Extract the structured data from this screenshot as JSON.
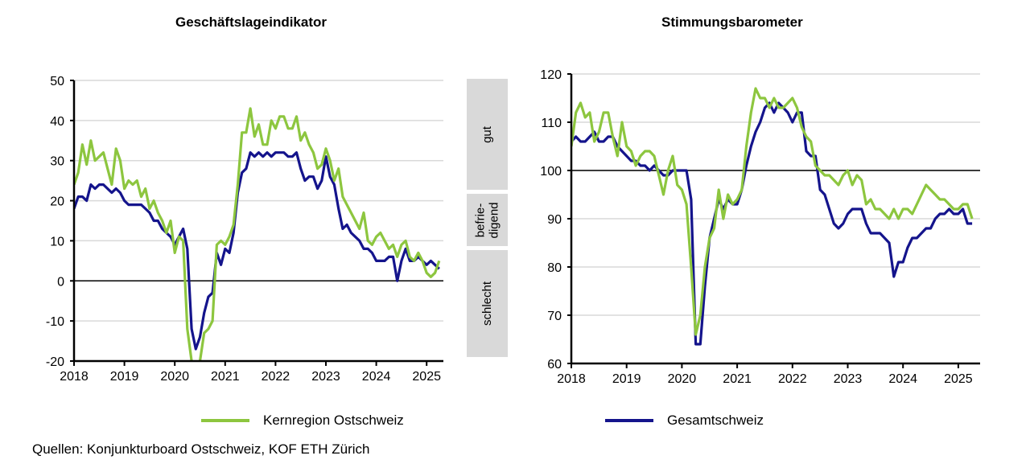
{
  "footer": {
    "source": "Quellen: Konjunkturboard Ostschweiz, KOF ETH Zürich"
  },
  "legend": [
    {
      "label": "Kernregion Ostschweiz",
      "color": "#8DC63F"
    },
    {
      "label": "Gesamtschweiz",
      "color": "#14148C"
    }
  ],
  "chart_data": [
    {
      "type": "line",
      "title": "Geschäftslageindikator",
      "x_start": "2018-01",
      "frequency": "monthly",
      "xticks": [
        "2018",
        "2019",
        "2020",
        "2021",
        "2022",
        "2023",
        "2024",
        "2025"
      ],
      "ylim": [
        -20,
        50
      ],
      "yticks": [
        -20,
        -10,
        0,
        10,
        20,
        30,
        40,
        50
      ],
      "reference_line": 0,
      "bands": [
        {
          "label": "gut"
        },
        {
          "label": "befrie-\ndigend"
        },
        {
          "label": "schlecht"
        }
      ],
      "series": [
        {
          "name": "Kernregion Ostschweiz",
          "color": "#8DC63F",
          "values": [
            24,
            27,
            34,
            29,
            35,
            30,
            31,
            32,
            28,
            24,
            33,
            30,
            23,
            25,
            24,
            25,
            21,
            23,
            18,
            20,
            17,
            15,
            12,
            15,
            7,
            11,
            10,
            -12,
            -20,
            -22,
            -20,
            -13,
            -12,
            -10,
            9,
            10,
            9,
            11,
            14,
            24,
            37,
            37,
            43,
            36,
            39,
            34,
            34,
            40,
            38,
            41,
            41,
            38,
            38,
            41,
            35,
            37,
            34,
            32,
            28,
            29,
            33,
            30,
            25,
            28,
            21,
            19,
            17,
            15,
            13,
            17,
            10,
            9,
            11,
            12,
            10,
            8,
            9,
            6,
            9,
            10,
            6,
            5,
            7,
            5,
            2,
            1,
            2,
            5
          ]
        },
        {
          "name": "Gesamtschweiz",
          "color": "#14148C",
          "values": [
            18,
            21,
            21,
            20,
            24,
            23,
            24,
            24,
            23,
            22,
            23,
            22,
            20,
            19,
            19,
            19,
            19,
            18,
            17,
            15,
            15,
            13,
            12,
            11,
            9,
            11,
            13,
            8,
            -12,
            -17,
            -14,
            -8,
            -4,
            -3,
            7,
            4,
            8,
            7,
            12,
            22,
            27,
            28,
            32,
            31,
            32,
            31,
            32,
            31,
            32,
            32,
            32,
            31,
            31,
            32,
            28,
            25,
            26,
            26,
            23,
            25,
            31,
            26,
            24,
            18,
            13,
            14,
            12,
            11,
            10,
            8,
            8,
            7,
            5,
            5,
            5,
            6,
            6,
            0,
            5,
            8,
            5,
            5,
            6,
            5,
            4,
            5,
            4,
            3
          ]
        }
      ]
    },
    {
      "type": "line",
      "title": "Stimmungsbarometer",
      "x_start": "2018-01",
      "frequency": "monthly",
      "xticks": [
        "2018",
        "2019",
        "2020",
        "2021",
        "2022",
        "2023",
        "2024",
        "2025"
      ],
      "ylim": [
        60,
        120
      ],
      "yticks": [
        60,
        70,
        80,
        90,
        100,
        110,
        120
      ],
      "reference_line": 100,
      "series": [
        {
          "name": "Kernregion Ostschweiz",
          "color": "#8DC63F",
          "values": [
            105,
            112,
            114,
            111,
            112,
            106,
            108,
            112,
            112,
            107,
            103,
            110,
            105,
            104,
            101,
            103,
            104,
            104,
            103,
            99,
            95,
            100,
            103,
            97,
            96,
            93,
            80,
            66,
            70,
            80,
            86,
            88,
            96,
            90,
            95,
            93,
            94,
            96,
            105,
            112,
            117,
            115,
            115,
            113,
            115,
            113,
            113,
            114,
            115,
            113,
            109,
            107,
            106,
            101,
            100,
            99,
            99,
            98,
            97,
            99,
            100,
            97,
            99,
            98,
            93,
            94,
            92,
            92,
            91,
            90,
            92,
            90,
            92,
            92,
            91,
            93,
            95,
            97,
            96,
            95,
            94,
            94,
            93,
            92,
            92,
            93,
            93,
            90
          ]
        },
        {
          "name": "Gesamtschweiz",
          "color": "#14148C",
          "values": [
            106,
            107,
            106,
            106,
            107,
            108,
            106,
            106,
            107,
            107,
            105,
            104,
            103,
            102,
            102,
            101,
            101,
            100,
            101,
            100,
            99,
            99,
            100,
            100,
            100,
            100,
            94,
            64,
            64,
            76,
            86,
            90,
            94,
            92,
            94,
            93,
            93,
            96,
            101,
            105,
            108,
            110,
            113,
            114,
            112,
            114,
            113,
            112,
            110,
            112,
            112,
            104,
            103,
            103,
            96,
            95,
            92,
            89,
            88,
            89,
            91,
            92,
            92,
            92,
            89,
            87,
            87,
            87,
            86,
            85,
            78,
            81,
            81,
            84,
            86,
            86,
            87,
            88,
            88,
            90,
            91,
            91,
            92,
            91,
            91,
            92,
            89,
            89
          ]
        }
      ]
    }
  ]
}
